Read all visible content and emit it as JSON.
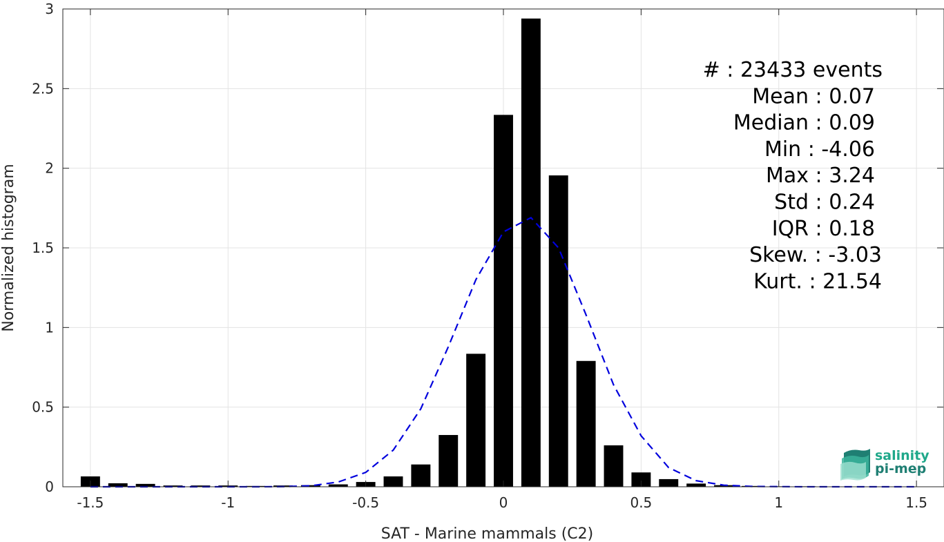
{
  "chart_data": {
    "type": "bar",
    "xlabel": "SAT - Marine mammals (C2)",
    "ylabel": "Normalized histogram",
    "xlim": [
      -1.6,
      1.6
    ],
    "ylim": [
      0,
      3
    ],
    "grid": true,
    "xticks": [
      -1.5,
      -1,
      -0.5,
      0,
      0.5,
      1,
      1.5
    ],
    "xtick_labels": [
      "-1.5",
      "-1",
      "-0.5",
      "0",
      "0.5",
      "1",
      "1.5"
    ],
    "yticks": [
      0,
      0.5,
      1,
      1.5,
      2,
      2.5,
      3
    ],
    "ytick_labels": [
      "0",
      "0.5",
      "1",
      "1.5",
      "2",
      "2.5",
      "3"
    ],
    "bar_width": 0.07,
    "bars": {
      "x": [
        -1.5,
        -1.4,
        -1.3,
        -1.2,
        -1.1,
        -1.0,
        -0.9,
        -0.8,
        -0.7,
        -0.6,
        -0.5,
        -0.4,
        -0.3,
        -0.2,
        -0.1,
        0.0,
        0.1,
        0.2,
        0.3,
        0.4,
        0.5,
        0.6,
        0.7,
        0.8,
        0.9,
        1.0,
        1.1,
        1.2,
        1.3,
        1.4,
        1.5
      ],
      "values": [
        0.065,
        0.022,
        0.018,
        0.008,
        0.008,
        0.008,
        0.005,
        0.008,
        0.01,
        0.015,
        0.03,
        0.065,
        0.14,
        0.325,
        0.835,
        2.335,
        2.94,
        1.955,
        0.79,
        0.26,
        0.09,
        0.048,
        0.02,
        0.01,
        0.005,
        0.003,
        0.003,
        0.002,
        0.002,
        0.002,
        0.002
      ],
      "color": "#000000"
    },
    "fit_curve": {
      "style": "dashed",
      "color": "#0000dd",
      "x": [
        -1.5,
        -1.4,
        -1.3,
        -1.2,
        -1.1,
        -1.0,
        -0.9,
        -0.8,
        -0.7,
        -0.6,
        -0.5,
        -0.4,
        -0.3,
        -0.2,
        -0.1,
        0.0,
        0.1,
        0.2,
        0.3,
        0.4,
        0.5,
        0.6,
        0.7,
        0.8,
        0.9,
        1.0,
        1.1,
        1.2,
        1.3,
        1.4,
        1.5
      ],
      "y": [
        0,
        0,
        0,
        0,
        0,
        0,
        0,
        0.001,
        0.006,
        0.03,
        0.09,
        0.23,
        0.49,
        0.88,
        1.3,
        1.6,
        1.69,
        1.5,
        1.08,
        0.64,
        0.32,
        0.12,
        0.038,
        0.01,
        0.002,
        0.001,
        0,
        0,
        0,
        0,
        0
      ]
    },
    "annotations": [
      "#  : 23433 events",
      "Mean : 0.07",
      "Median : 0.09",
      "Min : -4.06",
      "Max : 3.24",
      "Std : 0.24",
      "IQR : 0.18",
      "Skew. : -3.03",
      "Kurt. : 21.54"
    ]
  },
  "logo": {
    "line1": "salinity",
    "line2": "pi-mep",
    "color": "#1fa88a"
  }
}
